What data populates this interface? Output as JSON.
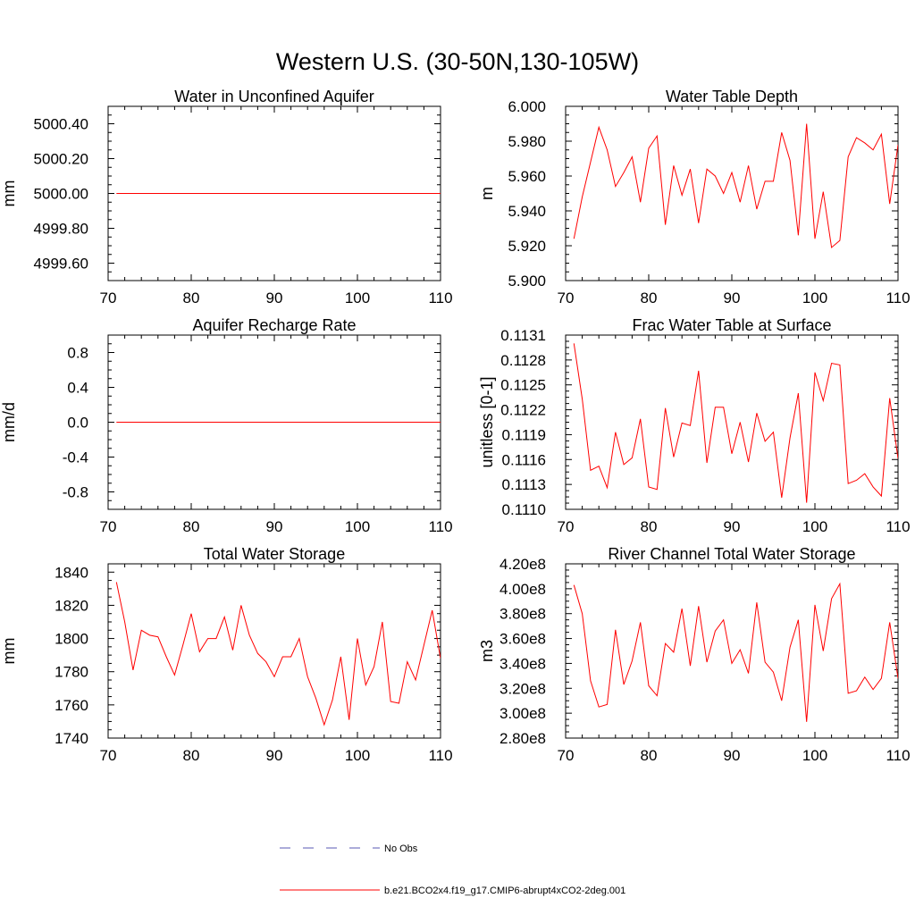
{
  "figure": {
    "title": "Western U.S. (30-50N,130-105W)"
  },
  "colors": {
    "model_line": "#ff0000",
    "obs_line": "#5a5ab4",
    "axes": "#000000",
    "background": "#ffffff"
  },
  "legend": {
    "entries": [
      {
        "label": "No Obs",
        "style": "dashed",
        "color": "#5a5ab4"
      },
      {
        "label": "b.e21.BCO2x4.f19_g17.CMIP6-abrupt4xCO2-2deg.001",
        "style": "solid",
        "color": "#ff0000"
      }
    ]
  },
  "chart_data": [
    {
      "type": "line",
      "title": "Water in Unconfined Aquifer",
      "xlabel": "",
      "ylabel": "mm",
      "xlim": [
        70,
        110
      ],
      "ylim": [
        4999.5,
        5000.5
      ],
      "xticks": [
        70,
        80,
        90,
        100,
        110
      ],
      "xtick_labels": [
        "70",
        "80",
        "90",
        "100",
        "110"
      ],
      "yticks": [
        4999.6,
        4999.8,
        5000.0,
        5000.2,
        5000.4
      ],
      "ytick_labels": [
        "4999.60",
        "4999.80",
        "5000.00",
        "5000.20",
        "5000.40"
      ],
      "series": [
        {
          "x_start": 71,
          "x_step": 1,
          "values": [
            5000,
            5000,
            5000,
            5000,
            5000,
            5000,
            5000,
            5000,
            5000,
            5000,
            5000,
            5000,
            5000,
            5000,
            5000,
            5000,
            5000,
            5000,
            5000,
            5000,
            5000,
            5000,
            5000,
            5000,
            5000,
            5000,
            5000,
            5000,
            5000,
            5000,
            5000,
            5000,
            5000,
            5000,
            5000,
            5000,
            5000,
            5000,
            5000,
            5000
          ]
        }
      ]
    },
    {
      "type": "line",
      "title": "Water Table Depth",
      "xlabel": "",
      "ylabel": "m",
      "xlim": [
        70,
        110
      ],
      "ylim": [
        5.9,
        6.0
      ],
      "xticks": [
        70,
        80,
        90,
        100,
        110
      ],
      "xtick_labels": [
        "70",
        "80",
        "90",
        "100",
        "110"
      ],
      "yticks": [
        5.9,
        5.92,
        5.94,
        5.96,
        5.98,
        6.0
      ],
      "ytick_labels": [
        "5.900",
        "5.920",
        "5.940",
        "5.960",
        "5.980",
        "6.000"
      ],
      "series": [
        {
          "x_start": 71,
          "x_step": 1,
          "values": [
            5.924,
            5.948,
            5.968,
            5.988,
            5.975,
            5.954,
            5.962,
            5.971,
            5.945,
            5.976,
            5.983,
            5.932,
            5.966,
            5.949,
            5.964,
            5.933,
            5.964,
            5.96,
            5.95,
            5.962,
            5.945,
            5.966,
            5.941,
            5.957,
            5.957,
            5.985,
            5.969,
            5.926,
            5.99,
            5.924,
            5.951,
            5.919,
            5.923,
            5.971,
            5.982,
            5.979,
            5.975,
            5.984,
            5.944,
            5.978
          ]
        }
      ]
    },
    {
      "type": "line",
      "title": "Aquifer Recharge Rate",
      "xlabel": "",
      "ylabel": "mm/d",
      "xlim": [
        70,
        110
      ],
      "ylim": [
        -1.0,
        1.0
      ],
      "xticks": [
        70,
        80,
        90,
        100,
        110
      ],
      "xtick_labels": [
        "70",
        "80",
        "90",
        "100",
        "110"
      ],
      "yticks": [
        -0.8,
        -0.4,
        0.0,
        0.4,
        0.8
      ],
      "ytick_labels": [
        "-0.8",
        "-0.4",
        "0.0",
        "0.4",
        "0.8"
      ],
      "series": [
        {
          "x_start": 71,
          "x_step": 1,
          "values": [
            0,
            0,
            0,
            0,
            0,
            0,
            0,
            0,
            0,
            0,
            0,
            0,
            0,
            0,
            0,
            0,
            0,
            0,
            0,
            0,
            0,
            0,
            0,
            0,
            0,
            0,
            0,
            0,
            0,
            0,
            0,
            0,
            0,
            0,
            0,
            0,
            0,
            0,
            0,
            0
          ]
        }
      ]
    },
    {
      "type": "line",
      "title": "Frac Water Table at Surface",
      "xlabel": "",
      "ylabel": "unitless [0-1]",
      "xlim": [
        70,
        110
      ],
      "ylim": [
        0.111,
        0.1131
      ],
      "xticks": [
        70,
        80,
        90,
        100,
        110
      ],
      "xtick_labels": [
        "70",
        "80",
        "90",
        "100",
        "110"
      ],
      "yticks": [
        0.111,
        0.1113,
        0.1116,
        0.1119,
        0.1122,
        0.1125,
        0.1128,
        0.1131
      ],
      "ytick_labels": [
        "0.1110",
        "0.1113",
        "0.1116",
        "0.1119",
        "0.1122",
        "0.1125",
        "0.1128",
        "0.1131"
      ],
      "series": [
        {
          "x_start": 71,
          "x_step": 1,
          "values": [
            0.113,
            0.11233,
            0.11147,
            0.11152,
            0.11126,
            0.11193,
            0.11154,
            0.11162,
            0.11209,
            0.11127,
            0.11124,
            0.11222,
            0.11163,
            0.11204,
            0.11201,
            0.11267,
            0.11156,
            0.11223,
            0.11223,
            0.11167,
            0.11205,
            0.11157,
            0.11216,
            0.11182,
            0.11193,
            0.11114,
            0.11186,
            0.1124,
            0.11108,
            0.11265,
            0.11231,
            0.11276,
            0.11274,
            0.11131,
            0.11135,
            0.11143,
            0.11127,
            0.11116,
            0.11234,
            0.11161
          ]
        }
      ]
    },
    {
      "type": "line",
      "title": "Total Water Storage",
      "xlabel": "",
      "ylabel": "mm",
      "xlim": [
        70,
        110
      ],
      "ylim": [
        1740,
        1845
      ],
      "xticks": [
        70,
        80,
        90,
        100,
        110
      ],
      "xtick_labels": [
        "70",
        "80",
        "90",
        "100",
        "110"
      ],
      "yticks": [
        1740,
        1760,
        1780,
        1800,
        1820,
        1840
      ],
      "ytick_labels": [
        "1740",
        "1760",
        "1780",
        "1800",
        "1820",
        "1840"
      ],
      "series": [
        {
          "x_start": 71,
          "x_step": 1,
          "values": [
            1834,
            1810,
            1781,
            1805,
            1802,
            1801,
            1789,
            1778,
            1796,
            1815,
            1792,
            1800,
            1800,
            1813,
            1793,
            1820,
            1802,
            1791,
            1786,
            1777,
            1789,
            1789,
            1800,
            1777,
            1764,
            1748,
            1763,
            1789,
            1751,
            1800,
            1772,
            1783,
            1810,
            1762,
            1761,
            1786,
            1775,
            1796,
            1817,
            1788
          ]
        }
      ]
    },
    {
      "type": "line",
      "title": "River Channel Total Water Storage",
      "xlabel": "",
      "ylabel": "m3",
      "xlim": [
        70,
        110
      ],
      "ylim": [
        280000000,
        420000000
      ],
      "xticks": [
        70,
        80,
        90,
        100,
        110
      ],
      "xtick_labels": [
        "70",
        "80",
        "90",
        "100",
        "110"
      ],
      "yticks": [
        280000000,
        300000000,
        320000000,
        340000000,
        360000000,
        380000000,
        400000000,
        420000000
      ],
      "ytick_labels": [
        "2.80e8",
        "3.00e8",
        "3.20e8",
        "3.40e8",
        "3.60e8",
        "3.80e8",
        "4.00e8",
        "4.20e8"
      ],
      "series": [
        {
          "x_start": 71,
          "x_step": 1,
          "values": [
            403000000,
            380000000,
            326000000,
            305000000,
            307000000,
            367000000,
            323000000,
            342000000,
            373000000,
            322000000,
            314000000,
            356000000,
            349000000,
            384000000,
            338000000,
            386000000,
            341000000,
            366000000,
            375000000,
            340000000,
            351000000,
            332000000,
            389000000,
            341000000,
            333000000,
            310000000,
            353000000,
            375000000,
            293000000,
            387000000,
            350000000,
            392000000,
            404000000,
            316000000,
            318000000,
            329000000,
            319000000,
            328000000,
            373000000,
            328000000
          ]
        }
      ]
    }
  ]
}
